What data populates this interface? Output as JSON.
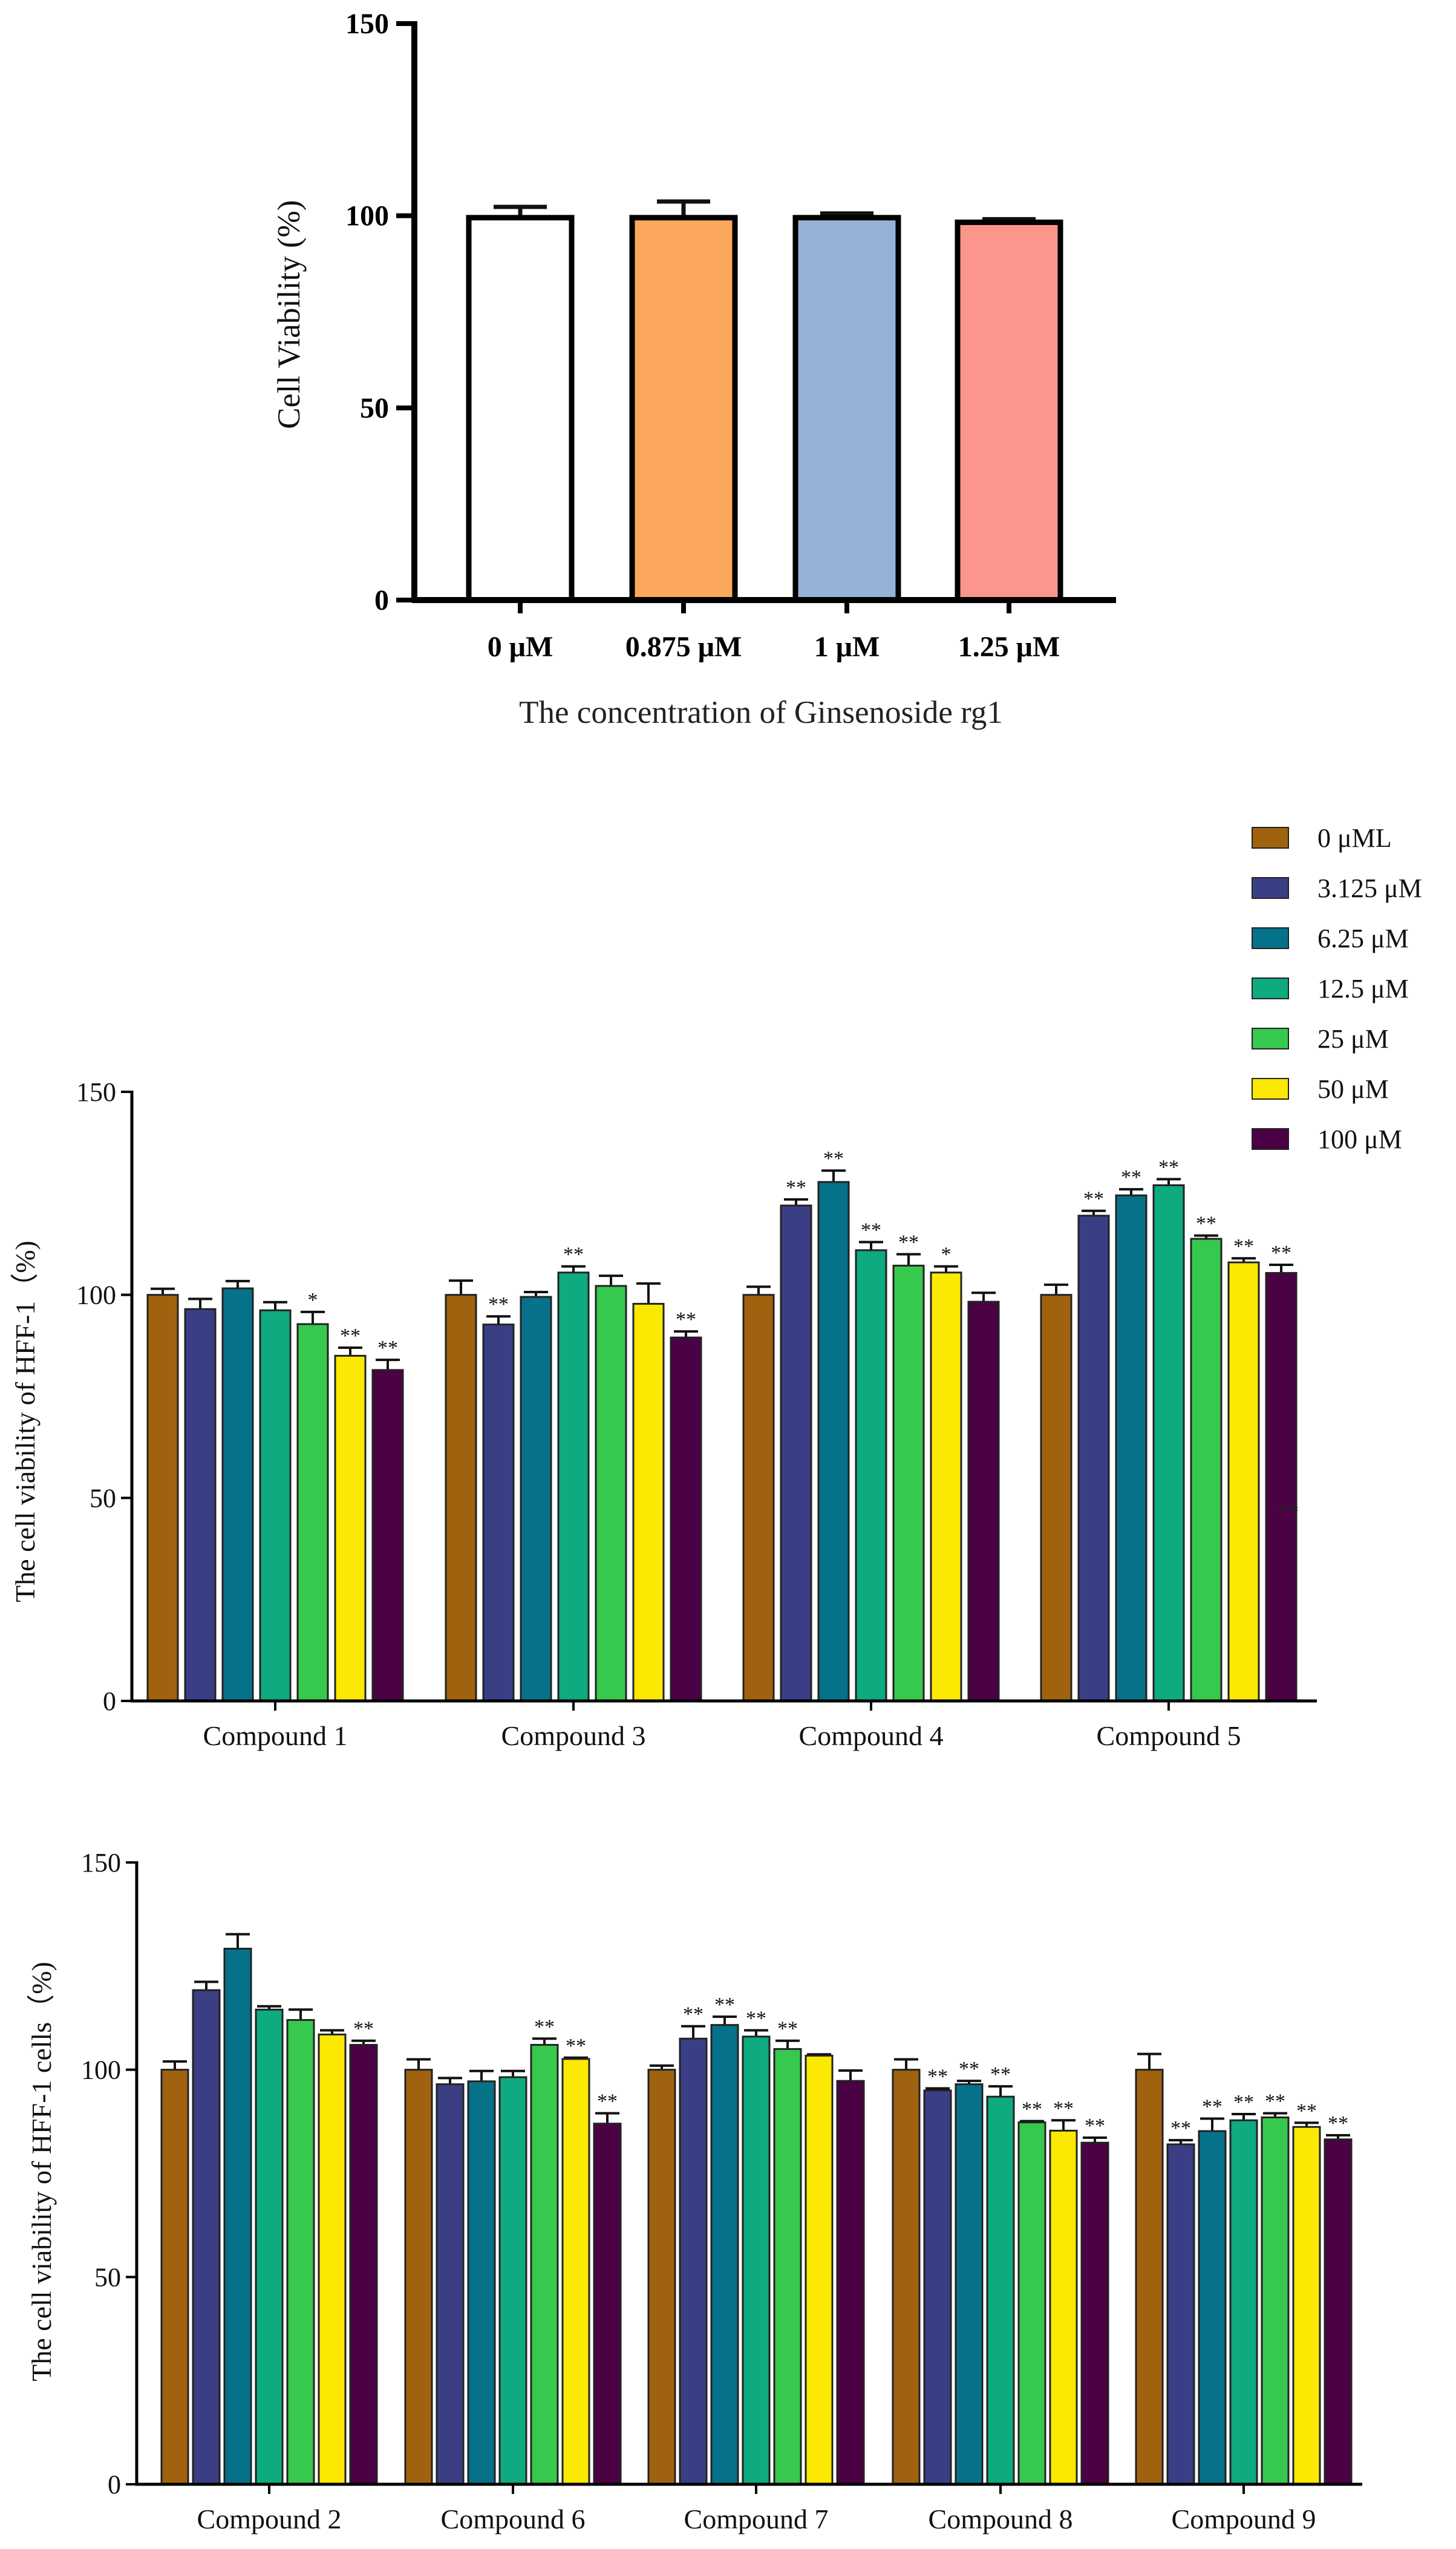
{
  "chart_data": [
    {
      "id": "top",
      "type": "bar",
      "title": "",
      "xlabel": "The concentration of Ginsenoside rg1",
      "ylabel": "Cell Viability (%)",
      "ylim": [
        0,
        150
      ],
      "yticks": [
        0,
        50,
        100,
        150
      ],
      "categories": [
        "0 μM",
        "0.875 μM",
        "1 μM",
        "1.25 μM"
      ],
      "values": [
        99.5,
        99.5,
        99.5,
        98.3
      ],
      "errors": [
        2.8,
        4.2,
        1.1,
        0.8
      ],
      "colors": [
        "#ffffff",
        "#fba85c",
        "#94b3d6",
        "#fb968c"
      ]
    },
    {
      "id": "middle",
      "type": "bar",
      "title": "",
      "xlabel": "",
      "ylabel": "The cell viability of  HFF-1（%)",
      "ylim": [
        0,
        150
      ],
      "yticks": [
        0,
        50,
        100,
        150
      ],
      "categories": [
        "Compound 1",
        "Compound 3",
        "Compound 4",
        "Compound 5"
      ],
      "series": [
        {
          "name": "0 μML",
          "color": "#a0620e",
          "values": [
            100,
            100,
            100,
            100
          ],
          "errors": [
            1.5,
            3.5,
            2.0,
            2.5
          ],
          "sig": [
            "",
            "",
            "",
            ""
          ]
        },
        {
          "name": "3.125 μM",
          "color": "#3a3f85",
          "values": [
            96.5,
            92.7,
            122,
            119.5
          ],
          "errors": [
            2.5,
            2.0,
            1.5,
            1.2
          ],
          "sig": [
            "",
            "**",
            "**",
            "**"
          ]
        },
        {
          "name": "6.25 μM",
          "color": "#057289",
          "values": [
            101.6,
            99.5,
            127.8,
            124.5
          ],
          "errors": [
            1.8,
            1.2,
            2.8,
            1.5
          ],
          "sig": [
            "",
            "",
            "**",
            "**"
          ]
        },
        {
          "name": "12.5 μM",
          "color": "#0eaa80",
          "values": [
            96.2,
            105.5,
            111,
            127
          ],
          "errors": [
            2.0,
            1.5,
            2.0,
            1.5
          ],
          "sig": [
            "",
            "**",
            "**",
            "**"
          ]
        },
        {
          "name": "25 μM",
          "color": "#37c84e",
          "values": [
            92.8,
            102.2,
            107.2,
            113.8
          ],
          "errors": [
            3.0,
            2.5,
            2.8,
            0.8
          ],
          "sig": [
            "*",
            "",
            "**",
            "**"
          ]
        },
        {
          "name": "50 μM",
          "color": "#fbe903",
          "values": [
            85,
            97.8,
            105.5,
            108
          ],
          "errors": [
            2.0,
            5.0,
            1.5,
            1.0
          ],
          "sig": [
            "**",
            "",
            "*",
            "**"
          ]
        },
        {
          "name": "100 μM",
          "color": "#4a0245",
          "values": [
            81.5,
            89.5,
            98.3,
            105.4
          ],
          "errors": [
            2.5,
            1.5,
            2.2,
            2.0
          ],
          "sig": [
            "**",
            "**",
            "",
            "**"
          ]
        }
      ],
      "annotations": [
        "**"
      ]
    },
    {
      "id": "bottom",
      "type": "bar",
      "title": "",
      "xlabel": "",
      "ylabel": "The cell viability of HFF-1 cells（%)",
      "ylim": [
        0,
        150
      ],
      "yticks": [
        0,
        50,
        100,
        150
      ],
      "categories": [
        "Compound 2",
        "Compound 6",
        "Compound 7",
        "Compound 8",
        "Compound 9"
      ],
      "series": [
        {
          "name": "0 μML",
          "color": "#a0620e",
          "values": [
            100,
            100,
            100,
            100,
            100
          ],
          "errors": [
            2.0,
            2.5,
            1.0,
            2.5,
            3.8
          ],
          "sig": [
            "",
            "",
            "",
            "",
            ""
          ]
        },
        {
          "name": "3.125 μM",
          "color": "#3a3f85",
          "values": [
            119.2,
            96.5,
            107.5,
            95,
            82
          ],
          "errors": [
            2.0,
            1.5,
            3.0,
            0.5,
            1.0
          ],
          "sig": [
            "",
            "",
            "**",
            "**",
            "**"
          ]
        },
        {
          "name": "6.25 μM",
          "color": "#057289",
          "values": [
            129.2,
            97.2,
            110.8,
            96.5,
            85.2
          ],
          "errors": [
            3.5,
            2.5,
            2.0,
            0.8,
            3.0
          ],
          "sig": [
            "",
            "",
            "**",
            "**",
            "**"
          ]
        },
        {
          "name": "12.5 μM",
          "color": "#0eaa80",
          "values": [
            114.5,
            98.2,
            108,
            93.5,
            87.8
          ],
          "errors": [
            0.8,
            1.5,
            1.5,
            2.5,
            1.5
          ],
          "sig": [
            "",
            "",
            "**",
            "**",
            "**"
          ]
        },
        {
          "name": "25 μM",
          "color": "#37c84e",
          "values": [
            112,
            106,
            105,
            87.3,
            88.5
          ],
          "errors": [
            2.5,
            1.5,
            2.0,
            0.3,
            1.0
          ],
          "sig": [
            "",
            "**",
            "**",
            "**",
            "**"
          ]
        },
        {
          "name": "50 μM",
          "color": "#fbe903",
          "values": [
            108.5,
            102.6,
            103.4,
            85.3,
            86.2
          ],
          "errors": [
            1.0,
            0.3,
            0.3,
            2.5,
            1.0
          ],
          "sig": [
            "",
            "**",
            "",
            "**",
            "**"
          ]
        },
        {
          "name": "100 μM",
          "color": "#4a0245",
          "values": [
            106,
            87,
            97.3,
            82.4,
            83.2
          ],
          "errors": [
            1.0,
            2.5,
            2.5,
            1.2,
            1.0
          ],
          "sig": [
            "**",
            "**",
            "",
            "**",
            "**"
          ]
        }
      ]
    }
  ]
}
